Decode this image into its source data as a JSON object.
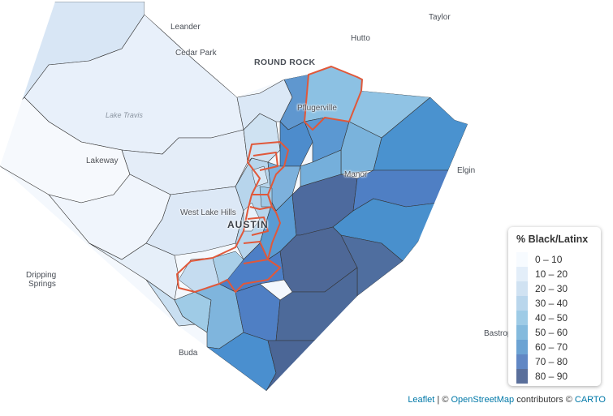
{
  "places": {
    "leander": "Leander",
    "taylor": "Taylor",
    "hutto": "Hutto",
    "cedar_park": "Cedar Park",
    "round_rock": "ROUND ROCK",
    "lake_travis": "Lake Travis",
    "pflugerville": "Pflugerville",
    "lakeway": "Lakeway",
    "manor": "Manor",
    "elgin": "Elgin",
    "west_lake_hills": "West Lake Hills",
    "austin": "AUSTIN",
    "dripping_springs_1": "Dripping",
    "dripping_springs_2": "Springs",
    "buda": "Buda",
    "bastrop": "Bastrop"
  },
  "legend": {
    "title": "% Black/Latinx",
    "items": [
      {
        "label": "0 – 10",
        "color": "#f7fbff"
      },
      {
        "label": "10 – 20",
        "color": "#e3eef9"
      },
      {
        "label": "20 – 30",
        "color": "#d0e2f2"
      },
      {
        "label": "30 – 40",
        "color": "#b9d6ec"
      },
      {
        "label": "40 – 50",
        "color": "#9ecbe6"
      },
      {
        "label": "50 – 60",
        "color": "#84badd"
      },
      {
        "label": "60 – 70",
        "color": "#6ca3d3"
      },
      {
        "label": "70 – 80",
        "color": "#6187c4"
      },
      {
        "label": "80 – 90",
        "color": "#5a6f9b"
      }
    ]
  },
  "attribution": {
    "leaflet": "Leaflet",
    "sep": " | © ",
    "osm": "OpenStreetMap",
    "contributors": " contributors © ",
    "carto": "CARTO"
  }
}
